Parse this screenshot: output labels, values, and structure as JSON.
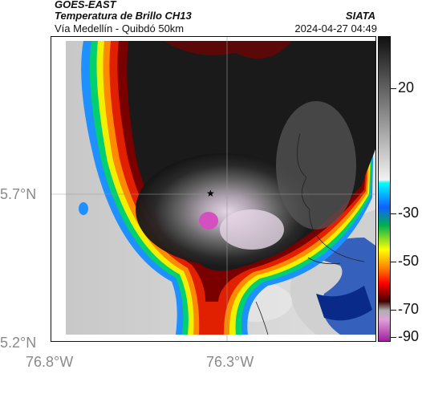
{
  "header": {
    "line1": "GOES-EAST",
    "line2": "Temperatura de Brillo CH13",
    "line3": "Vía Medellín - Quibdó 50km",
    "brand": "SIATA",
    "datetime": "2024-04-27 04:49"
  },
  "axes": {
    "lat_labels": [
      "5.7°N",
      "5.2°N"
    ],
    "lon_labels": [
      "76.8°W",
      "76.3°W"
    ]
  },
  "colorbar": {
    "labels": [
      "20",
      "-30",
      "-50",
      "-70",
      "-90"
    ],
    "units_shown": ""
  },
  "marker": {
    "icon": "star-icon"
  },
  "colors": {
    "cold_core": "#d44fc0",
    "cloud_dark": "#1a1a1a",
    "warm_ring": "#ff2a00",
    "ground_clear": "#d8d8d8"
  }
}
